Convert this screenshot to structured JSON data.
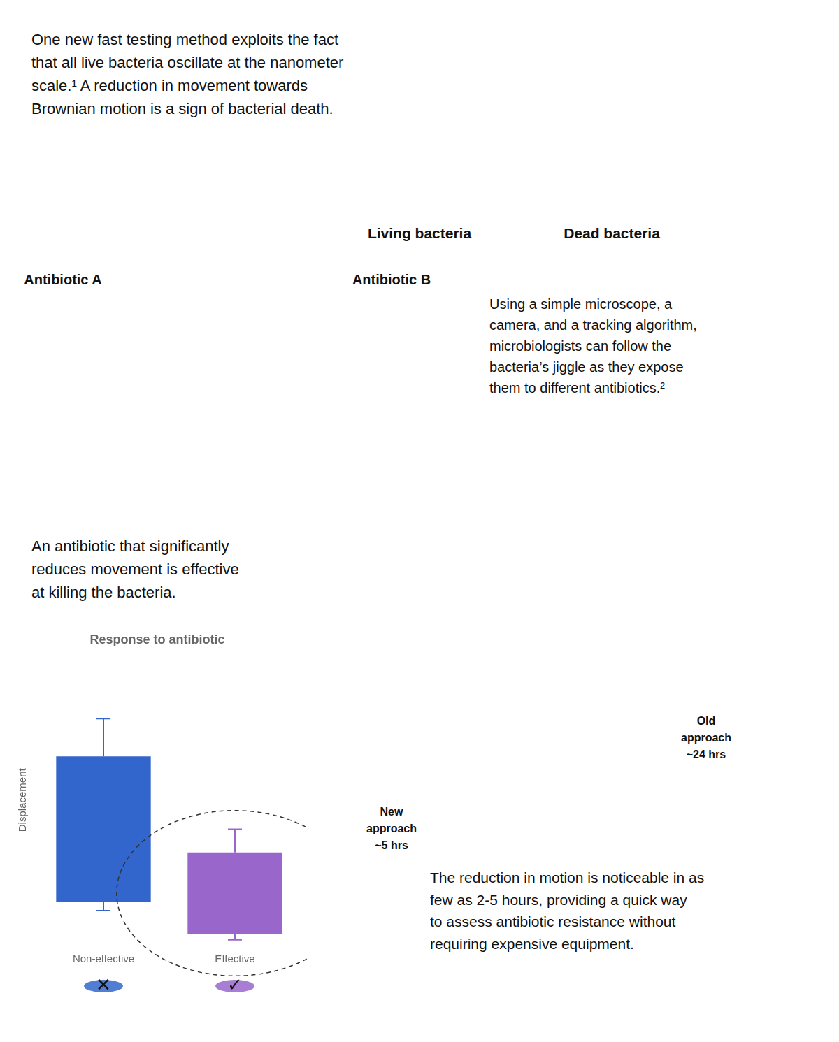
{
  "chart_data": {
    "type": "bar",
    "title": "Response to antibiotic",
    "y_label": "Displacement",
    "categories": [
      "Non-effective",
      "Effective"
    ],
    "bottoms": [
      0.15,
      0.04
    ],
    "values": [
      0.5,
      0.28
    ],
    "error_low": [
      0.12,
      0.02
    ],
    "error_high": [
      0.78,
      0.4
    ],
    "colors": [
      "#3366cc",
      "#9966cc"
    ],
    "stacked": true,
    "ylim": [
      0,
      1.0
    ],
    "yticks": [],
    "tick_labels": "x",
    "grid": false,
    "annotations": [
      "One new fast testing method exploits the fact\nthat all live bacteria oscillate at the nanometer\nscale.¹ A reduction in movement towards\nBrownian motion is a sign of bacterial death.",
      "Living bacteria",
      "Dead bacteria",
      "Antibiotic A",
      "Antibiotic B",
      "Using a simple microscope, a\ncamera, and a tracking algorithm,\nmicrobiologists can follow the\nbacteria’s jiggle as they expose\nthem to different antibiotics.²",
      "An antibiotic that significantly\nreduces movement is effective\nat killing the bacteria.",
      "✕",
      "✓",
      "New\napproach\n~5 hrs",
      "Old\napproach\n~24 hrs",
      "The reduction in motion is noticeable in as\nfew as 2-5 hours, providing a quick way\nto assess antibiotic resistance without\nrequiring expensive equipment."
    ]
  }
}
